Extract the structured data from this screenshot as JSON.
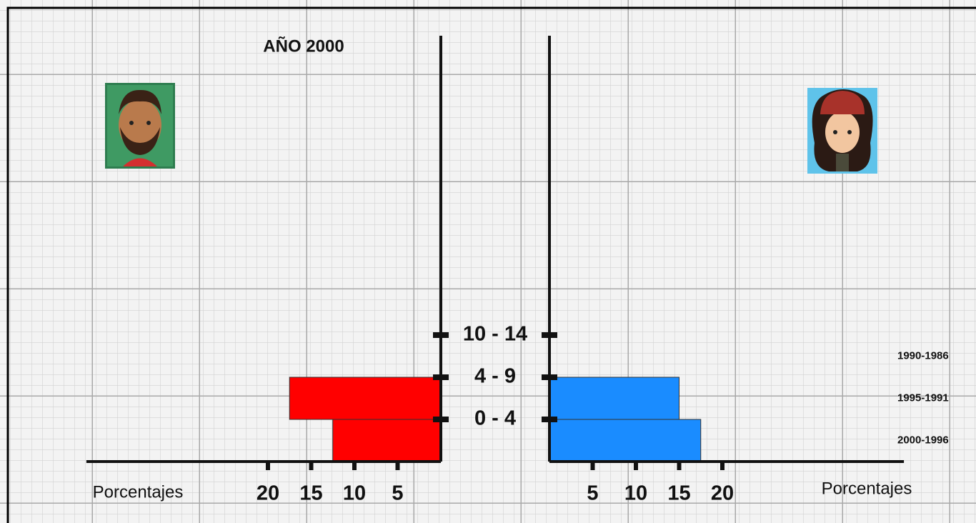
{
  "chart_data": {
    "type": "pyramid",
    "title": "AÑO 2000",
    "x_label_left": "Porcentajes",
    "x_label_right": "Porcentajes",
    "categories": [
      "0 - 4",
      "4 - 9",
      "10 - 14"
    ],
    "birth_years": [
      "2000-1996",
      "1995-1991",
      "1990-1986"
    ],
    "series": [
      {
        "color": "#ff0000",
        "side": "left",
        "values": [
          12.5,
          17.5,
          0
        ]
      },
      {
        "color": "#1a8cff",
        "side": "right",
        "values": [
          17.5,
          15,
          0
        ]
      }
    ],
    "xlim": [
      0,
      41
    ],
    "xticks": [
      5,
      10,
      15,
      20
    ]
  }
}
